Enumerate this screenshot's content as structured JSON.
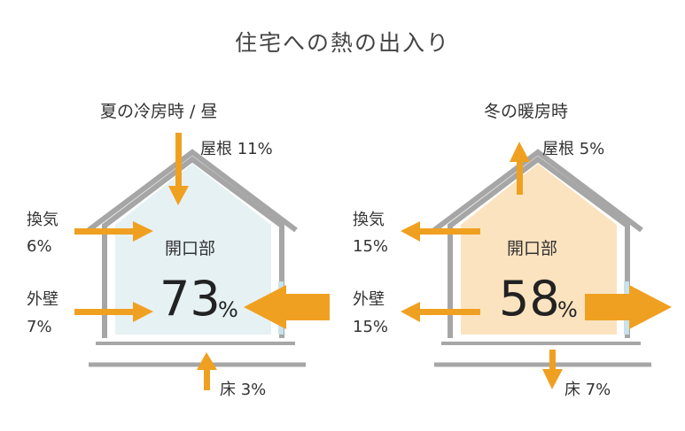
{
  "title": "住宅への熱の出入り",
  "colors": {
    "arrow": "#f0a020",
    "house": "#a6a6a6",
    "summer_fill": "#e6f1f4",
    "winter_fill": "#fbe3bf",
    "window": "#c9e2ec"
  },
  "summer": {
    "subtitle": "夏の冷房時 / 昼",
    "opening_label": "開口部",
    "opening_value": "73",
    "percent_sign": "%",
    "roof": "屋根 11%",
    "vent_label": "換気",
    "vent_value": "6%",
    "wall_label": "外壁",
    "wall_value": "7%",
    "floor": "床 3%"
  },
  "winter": {
    "subtitle": "冬の暖房時",
    "opening_label": "開口部",
    "opening_value": "58",
    "percent_sign": "%",
    "roof": "屋根 5%",
    "vent_label": "換気",
    "vent_value": "15%",
    "wall_label": "外壁",
    "wall_value": "15%",
    "floor": "床 7%"
  }
}
